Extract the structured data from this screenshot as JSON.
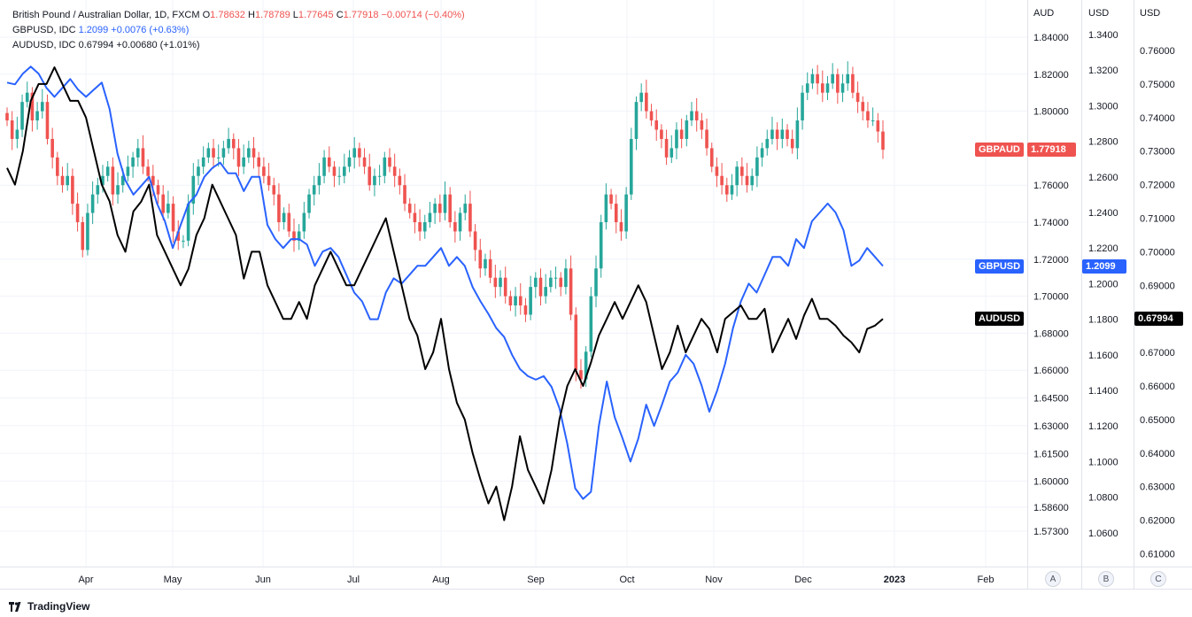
{
  "legend": {
    "gbpaud": {
      "name": "British Pound / Australian Dollar, 1D, FXCM",
      "o": "O",
      "o_val": "1.78632",
      "h": "H",
      "h_val": "1.78789",
      "l": "L",
      "l_val": "1.77645",
      "c": "C",
      "c_val": "1.77918",
      "chg": "−0.00714 (−0.40%)"
    },
    "gbpusd": {
      "name": "GBPUSD, IDC",
      "val": "1.2099",
      "chg": "+0.0076 (+0.63%)"
    },
    "audusd": {
      "name": "AUDUSD, IDC",
      "val": "0.67994",
      "chg": "+0.00680 (+1.01%)"
    }
  },
  "axis_heads": {
    "a": "AUD",
    "b": "USD",
    "c": "USD"
  },
  "price_tags": {
    "gbpaud": {
      "name": "GBPAUD",
      "value": "1.77918"
    },
    "gbpusd": {
      "name": "GBPUSD",
      "value": "1.2099"
    },
    "audusd": {
      "name": "AUDUSD",
      "value": "0.67994"
    }
  },
  "scale_buttons": [
    "A",
    "B",
    "C"
  ],
  "footer": {
    "brand": "TradingView"
  },
  "colors": {
    "up": "#26a69a",
    "down": "#ef5350",
    "gbpusd": "#2962ff",
    "audusd": "#000000",
    "grid": "#f0f3fa"
  },
  "chart_data": {
    "type": "line",
    "x_ticks": [
      "Apr",
      "May",
      "Jun",
      "Jul",
      "Aug",
      "Sep",
      "Oct",
      "Nov",
      "Dec",
      "2023",
      "Feb"
    ],
    "axes": {
      "A": {
        "unit": "AUD",
        "ticks": [
          "1.84000",
          "1.82000",
          "1.80000",
          "1.76000",
          "1.74000",
          "1.72000",
          "1.70000",
          "1.68000",
          "1.66000",
          "1.64500",
          "1.63000",
          "1.61500",
          "1.60000",
          "1.58600",
          "1.57300"
        ]
      },
      "B": {
        "unit": "USD",
        "ticks": [
          "1.3400",
          "1.3200",
          "1.3000",
          "1.2800",
          "1.2600",
          "1.2400",
          "1.2200",
          "1.2000",
          "1.1800",
          "1.1600",
          "1.1400",
          "1.1200",
          "1.1000",
          "1.0800",
          "1.0600"
        ]
      },
      "C": {
        "unit": "USD",
        "ticks": [
          "0.76000",
          "0.75000",
          "0.74000",
          "0.73000",
          "0.72000",
          "0.71000",
          "0.70000",
          "0.69000",
          "0.68000",
          "0.67000",
          "0.66000",
          "0.65000",
          "0.64000",
          "0.63000",
          "0.62000",
          "0.61000"
        ]
      }
    },
    "series": [
      {
        "name": "GBPAUD",
        "type": "candlestick",
        "axis": "A",
        "close": [
          1.795,
          1.785,
          1.79,
          1.805,
          1.81,
          1.795,
          1.8,
          1.805,
          1.785,
          1.775,
          1.765,
          1.76,
          1.765,
          1.75,
          1.74,
          1.725,
          1.745,
          1.755,
          1.76,
          1.765,
          1.77,
          1.755,
          1.76,
          1.765,
          1.77,
          1.775,
          1.78,
          1.77,
          1.765,
          1.76,
          1.755,
          1.745,
          1.75,
          1.735,
          1.73,
          1.73,
          1.75,
          1.765,
          1.77,
          1.775,
          1.78,
          1.775,
          1.775,
          1.78,
          1.785,
          1.78,
          1.77,
          1.775,
          1.78,
          1.775,
          1.77,
          1.765,
          1.76,
          1.755,
          1.74,
          1.745,
          1.735,
          1.73,
          1.735,
          1.745,
          1.755,
          1.76,
          1.765,
          1.775,
          1.77,
          1.765,
          1.765,
          1.77,
          1.775,
          1.78,
          1.775,
          1.77,
          1.76,
          1.765,
          1.765,
          1.775,
          1.77,
          1.765,
          1.76,
          1.75,
          1.745,
          1.74,
          1.735,
          1.74,
          1.745,
          1.75,
          1.745,
          1.755,
          1.74,
          1.735,
          1.745,
          1.75,
          1.735,
          1.725,
          1.715,
          1.72,
          1.71,
          1.705,
          1.71,
          1.7,
          1.695,
          1.7,
          1.695,
          1.69,
          1.705,
          1.71,
          1.7,
          1.705,
          1.71,
          1.71,
          1.705,
          1.715,
          1.69,
          1.66,
          1.655,
          1.67,
          1.7,
          1.715,
          1.74,
          1.755,
          1.75,
          1.74,
          1.735,
          1.755,
          1.785,
          1.805,
          1.81,
          1.8,
          1.795,
          1.79,
          1.785,
          1.775,
          1.78,
          1.79,
          1.785,
          1.795,
          1.8,
          1.795,
          1.79,
          1.78,
          1.77,
          1.765,
          1.76,
          1.755,
          1.76,
          1.77,
          1.765,
          1.76,
          1.765,
          1.775,
          1.78,
          1.785,
          1.79,
          1.785,
          1.79,
          1.785,
          1.78,
          1.795,
          1.81,
          1.815,
          1.82,
          1.815,
          1.81,
          1.815,
          1.82,
          1.81,
          1.815,
          1.82,
          1.81,
          1.805,
          1.8,
          1.795,
          1.795,
          1.789,
          1.7792
        ]
      },
      {
        "name": "GBPUSD",
        "type": "line",
        "axis": "B",
        "values": [
          1.313,
          1.312,
          1.318,
          1.322,
          1.318,
          1.31,
          1.305,
          1.31,
          1.315,
          1.309,
          1.305,
          1.309,
          1.313,
          1.298,
          1.273,
          1.258,
          1.25,
          1.255,
          1.26,
          1.245,
          1.235,
          1.22,
          1.233,
          1.245,
          1.25,
          1.26,
          1.265,
          1.268,
          1.262,
          1.262,
          1.252,
          1.26,
          1.26,
          1.233,
          1.225,
          1.22,
          1.225,
          1.225,
          1.222,
          1.21,
          1.218,
          1.22,
          1.215,
          1.205,
          1.195,
          1.19,
          1.18,
          1.18,
          1.195,
          1.203,
          1.2,
          1.205,
          1.21,
          1.21,
          1.215,
          1.22,
          1.21,
          1.215,
          1.21,
          1.198,
          1.19,
          1.183,
          1.175,
          1.17,
          1.16,
          1.152,
          1.148,
          1.146,
          1.148,
          1.142,
          1.13,
          1.11,
          1.085,
          1.079,
          1.083,
          1.12,
          1.145,
          1.125,
          1.113,
          1.1,
          1.113,
          1.132,
          1.12,
          1.132,
          1.145,
          1.15,
          1.16,
          1.155,
          1.143,
          1.128,
          1.14,
          1.155,
          1.175,
          1.19,
          1.2,
          1.195,
          1.205,
          1.215,
          1.215,
          1.21,
          1.225,
          1.22,
          1.235,
          1.24,
          1.245,
          1.24,
          1.23,
          1.21,
          1.213,
          1.22,
          1.215,
          1.2099
        ]
      },
      {
        "name": "AUDUSD",
        "type": "line",
        "axis": "C",
        "values": [
          0.725,
          0.72,
          0.73,
          0.745,
          0.75,
          0.75,
          0.755,
          0.75,
          0.745,
          0.745,
          0.74,
          0.73,
          0.72,
          0.715,
          0.705,
          0.7,
          0.712,
          0.715,
          0.72,
          0.705,
          0.7,
          0.695,
          0.69,
          0.695,
          0.705,
          0.71,
          0.72,
          0.715,
          0.71,
          0.705,
          0.692,
          0.7,
          0.7,
          0.69,
          0.685,
          0.68,
          0.68,
          0.685,
          0.68,
          0.69,
          0.695,
          0.7,
          0.695,
          0.69,
          0.69,
          0.695,
          0.7,
          0.705,
          0.71,
          0.7,
          0.69,
          0.68,
          0.675,
          0.665,
          0.67,
          0.68,
          0.665,
          0.655,
          0.65,
          0.64,
          0.632,
          0.625,
          0.63,
          0.62,
          0.63,
          0.645,
          0.635,
          0.63,
          0.625,
          0.635,
          0.65,
          0.66,
          0.665,
          0.66,
          0.667,
          0.675,
          0.68,
          0.685,
          0.68,
          0.685,
          0.69,
          0.685,
          0.675,
          0.665,
          0.67,
          0.678,
          0.67,
          0.675,
          0.68,
          0.677,
          0.67,
          0.68,
          0.682,
          0.684,
          0.68,
          0.68,
          0.683,
          0.67,
          0.675,
          0.68,
          0.674,
          0.681,
          0.686,
          0.68,
          0.68,
          0.678,
          0.675,
          0.673,
          0.67,
          0.677,
          0.678,
          0.68
        ]
      }
    ]
  }
}
